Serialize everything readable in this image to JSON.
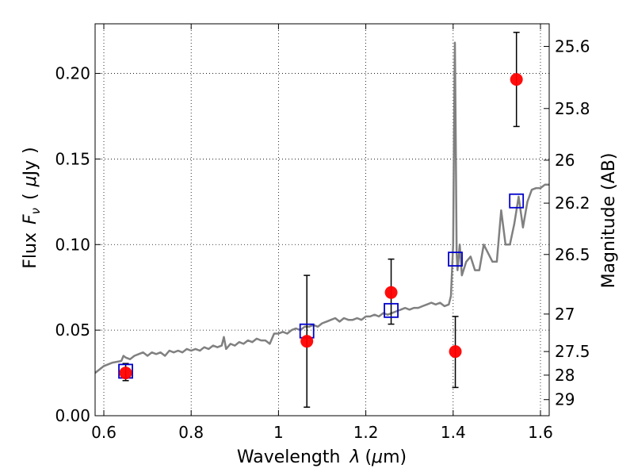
{
  "chart_data": {
    "type": "scatter",
    "xlabel": "Wavelength",
    "xlabel_lambda": "λ",
    "xlabel_unit_open": "(",
    "xlabel_unit_mu": "μ",
    "xlabel_unit_rest": "m)",
    "ylabel": "Flux",
    "ylabel_symbol": "F",
    "ylabel_subscript": "ν",
    "ylabel_unit_open": "(",
    "ylabel_unit_mu": "μ",
    "ylabel_unit_rest": "Jy",
    "ylabel_unit_close": ")",
    "y2label": "Magnitude (AB)",
    "xlim": [
      0.58,
      1.62
    ],
    "ylim": [
      0.0,
      0.229
    ],
    "grid": true,
    "x_ticks": [
      0.6,
      0.8,
      1.0,
      1.2,
      1.4,
      1.6
    ],
    "x_tick_labels": [
      "0.6",
      "0.8",
      "1",
      "1.2",
      "1.4",
      "1.6"
    ],
    "y_ticks": [
      0.0,
      0.05,
      0.1,
      0.15,
      0.2
    ],
    "y_tick_labels": [
      "0.00",
      "0.05",
      "0.10",
      "0.15",
      "0.20"
    ],
    "y2_ticks": [
      {
        "label": "25.6",
        "flux": 0.2158
      },
      {
        "label": "25.8",
        "flux": 0.1795
      },
      {
        "label": "26",
        "flux": 0.1493
      },
      {
        "label": "26.2",
        "flux": 0.1242
      },
      {
        "label": "26.5",
        "flux": 0.0942
      },
      {
        "label": "27",
        "flux": 0.0594
      },
      {
        "label": "27.5",
        "flux": 0.0375
      },
      {
        "label": "28",
        "flux": 0.0237
      },
      {
        "label": "29",
        "flux": 0.0094
      }
    ],
    "model_spectrum": {
      "color": "#808080",
      "x": [
        0.58,
        0.6,
        0.62,
        0.64,
        0.645,
        0.65,
        0.66,
        0.67,
        0.68,
        0.69,
        0.7,
        0.71,
        0.72,
        0.73,
        0.74,
        0.75,
        0.76,
        0.77,
        0.78,
        0.79,
        0.8,
        0.81,
        0.82,
        0.83,
        0.84,
        0.85,
        0.86,
        0.87,
        0.875,
        0.88,
        0.89,
        0.9,
        0.91,
        0.92,
        0.93,
        0.94,
        0.95,
        0.96,
        0.97,
        0.98,
        0.99,
        1.0,
        1.01,
        1.02,
        1.03,
        1.04,
        1.05,
        1.06,
        1.07,
        1.08,
        1.09,
        1.1,
        1.11,
        1.12,
        1.13,
        1.14,
        1.15,
        1.16,
        1.17,
        1.18,
        1.19,
        1.2,
        1.21,
        1.22,
        1.23,
        1.24,
        1.25,
        1.26,
        1.27,
        1.28,
        1.29,
        1.3,
        1.31,
        1.32,
        1.33,
        1.34,
        1.35,
        1.36,
        1.37,
        1.38,
        1.39,
        1.395,
        1.4,
        1.402,
        1.404,
        1.406,
        1.408,
        1.41,
        1.415,
        1.42,
        1.43,
        1.44,
        1.45,
        1.46,
        1.47,
        1.48,
        1.49,
        1.5,
        1.51,
        1.52,
        1.53,
        1.54,
        1.545,
        1.55,
        1.56,
        1.57,
        1.58,
        1.59,
        1.6,
        1.61,
        1.62
      ],
      "y": [
        0.025,
        0.029,
        0.031,
        0.032,
        0.035,
        0.034,
        0.033,
        0.035,
        0.036,
        0.037,
        0.035,
        0.037,
        0.036,
        0.037,
        0.035,
        0.038,
        0.037,
        0.038,
        0.037,
        0.039,
        0.038,
        0.039,
        0.038,
        0.04,
        0.039,
        0.041,
        0.04,
        0.041,
        0.046,
        0.039,
        0.042,
        0.041,
        0.043,
        0.042,
        0.044,
        0.043,
        0.045,
        0.044,
        0.044,
        0.042,
        0.048,
        0.048,
        0.049,
        0.048,
        0.05,
        0.051,
        0.05,
        0.052,
        0.052,
        0.053,
        0.052,
        0.054,
        0.055,
        0.056,
        0.057,
        0.055,
        0.057,
        0.056,
        0.056,
        0.057,
        0.056,
        0.058,
        0.058,
        0.059,
        0.058,
        0.06,
        0.059,
        0.06,
        0.061,
        0.062,
        0.063,
        0.062,
        0.063,
        0.063,
        0.064,
        0.065,
        0.066,
        0.065,
        0.066,
        0.064,
        0.065,
        0.07,
        0.1,
        0.165,
        0.218,
        0.16,
        0.095,
        0.085,
        0.1,
        0.082,
        0.09,
        0.093,
        0.085,
        0.085,
        0.1,
        0.095,
        0.09,
        0.09,
        0.12,
        0.1,
        0.1,
        0.112,
        0.12,
        0.128,
        0.11,
        0.125,
        0.132,
        0.133,
        0.133,
        0.135,
        0.135
      ]
    },
    "series": [
      {
        "marker": "open-square",
        "color": "#0000cc",
        "x": [
          0.65,
          1.065,
          1.258,
          1.405,
          1.545
        ],
        "y": [
          0.026,
          0.0495,
          0.0615,
          0.0915,
          0.1255
        ]
      },
      {
        "marker": "filled-circle",
        "color": "#ff0000",
        "x": [
          0.65,
          1.065,
          1.258,
          1.405,
          1.545
        ],
        "y": [
          0.025,
          0.0435,
          0.072,
          0.0375,
          0.1965
        ],
        "yerr_low": [
          0.0045,
          0.0385,
          0.0185,
          0.021,
          0.0275
        ],
        "yerr_high": [
          0.0055,
          0.0385,
          0.0195,
          0.0205,
          0.0275
        ]
      }
    ]
  }
}
